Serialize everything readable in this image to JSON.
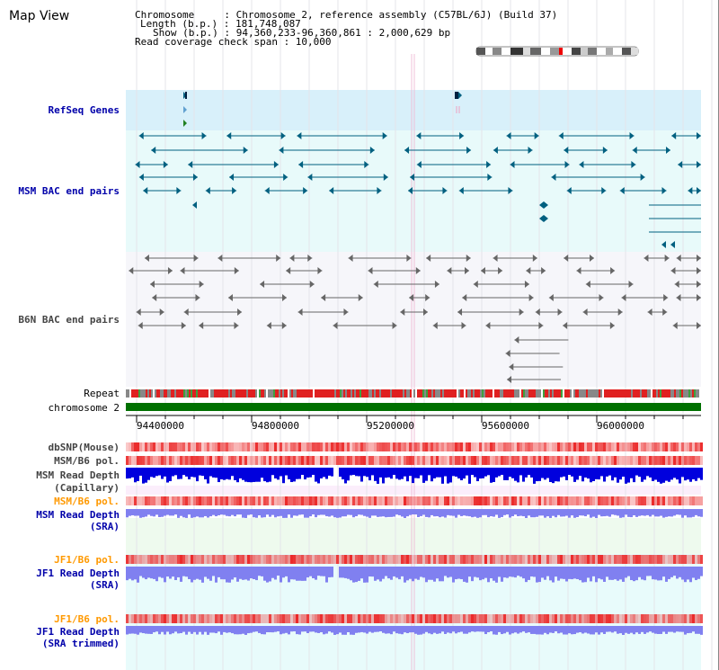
{
  "header": {
    "title": "Map View",
    "lines": [
      "Chromosome     : Chromosome 2, reference assembly (C57BL/6J) (Build 37)",
      "Length (b.p.) : 181,748,087",
      "Show (b.p.) : 94,360,233-96,360,861 : 2,000,629 bp",
      "Read coverage check span : 10,000"
    ]
  },
  "tracks": {
    "refseq": "RefSeq Genes",
    "msm_bac": "MSM BAC end pairs",
    "b6n_bac": "B6N BAC end pairs",
    "repeat": "Repeat",
    "chromosome": "chromosome 2",
    "dbsnp": "dbSNP(Mouse)",
    "msm_b6_pol_1": "MSM/B6 pol.",
    "msm_depth_cap_1": "MSM Read Depth",
    "msm_depth_cap_2": "(Capillary)",
    "msm_b6_pol_2": "MSM/B6 pol.",
    "msm_depth_sra_1": "MSM Read Depth",
    "msm_depth_sra_2": "(SRA)",
    "jf1_b6_pol_1": "JF1/B6 pol.",
    "jf1_depth_1": "JF1 Read Depth",
    "jf1_depth_2": "(SRA)",
    "jf1_b6_pol_2": "JF1/B6 pol.",
    "jf1_trim_1": "JF1 Read Depth",
    "jf1_trim_2": "(SRA trimmed)"
  },
  "axis": {
    "ticks": [
      "94400000",
      "94800000",
      "95200000",
      "95600000",
      "96000000"
    ]
  },
  "colors": {
    "refseq_bg": "#d8f0fa",
    "msm_bac_bg": "#e8fafa",
    "b6n_bac_bg": "#f6f6fa",
    "msm_line": "#006080",
    "b6n_line": "#666666",
    "repeat": "#e02020",
    "chromosome": "#007000",
    "snp": "#f07070",
    "depth_cap": "#0000dd",
    "depth_sra": "#8080f0",
    "lower_bg_green": "#eefaee",
    "lower_bg_cyan": "#e8fbfb",
    "label_navy": "#0000aa",
    "label_orange": "#ff9900"
  }
}
